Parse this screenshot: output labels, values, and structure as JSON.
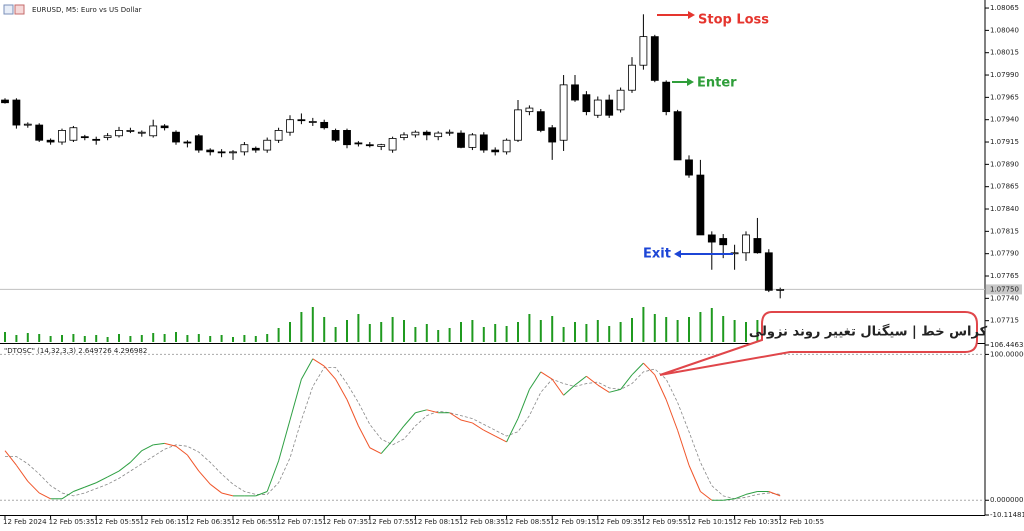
{
  "chart_data": [
    {
      "type": "candlestick",
      "title": "EURUSD, M5: Euro vs US Dollar",
      "categories": [
        "12 Feb 2024",
        null,
        null,
        null,
        "12 Feb 05:35",
        null,
        null,
        null,
        "12 Feb 05:55",
        null,
        null,
        null,
        "12 Feb 06:15",
        null,
        null,
        null,
        "12 Feb 06:35",
        null,
        null,
        null,
        "12 Feb 06:55",
        null,
        null,
        null,
        "12 Feb 07:15",
        null,
        null,
        null,
        "12 Feb 07:35",
        null,
        null,
        null,
        "12 Feb 07:55",
        null,
        null,
        null,
        "12 Feb 08:15",
        null,
        null,
        null,
        "12 Feb 08:35",
        null,
        null,
        null,
        "12 Feb 08:55",
        null,
        null,
        null,
        "12 Feb 09:15",
        null,
        null,
        null,
        "12 Feb 09:35",
        null,
        null,
        null,
        "12 Feb 09:55",
        null,
        null,
        null,
        "12 Feb 10:15",
        null,
        null,
        null,
        "12 Feb 10:35",
        null,
        null,
        null,
        "12 Feb 10:55"
      ],
      "open": [
        1.07962,
        1.07962,
        1.07934,
        1.07934,
        1.07917,
        1.07915,
        1.07917,
        1.07921,
        1.07918,
        1.0792,
        1.07922,
        1.07927,
        1.07925,
        1.07922,
        1.07933,
        1.07926,
        1.07915,
        1.07922,
        1.07906,
        1.07904,
        1.07903,
        1.07904,
        1.07908,
        1.07906,
        1.07917,
        1.07926,
        1.0794,
        1.07937,
        1.07937,
        1.07928,
        1.07928,
        1.07914,
        1.07912,
        1.0791,
        1.07906,
        1.0792,
        1.07923,
        1.07926,
        1.07921,
        1.07925,
        1.07925,
        1.07909,
        1.07923,
        1.07906,
        1.07904,
        1.07917,
        1.07949,
        1.07949,
        1.07931,
        1.07917,
        1.07979,
        1.07968,
        1.07945,
        1.07962,
        1.07951,
        1.07973,
        1.08001,
        1.08033,
        1.07982,
        1.07949,
        1.07895,
        1.07878,
        1.07811,
        1.07807,
        1.07791,
        1.07791,
        1.07807,
        1.07791,
        1.07749
      ],
      "high": [
        1.07964,
        1.07964,
        1.07937,
        1.07936,
        1.07919,
        1.0793,
        1.07933,
        1.07923,
        1.07921,
        1.07925,
        1.07932,
        1.07931,
        1.07928,
        1.0794,
        1.07935,
        1.07928,
        1.07917,
        1.07924,
        1.07908,
        1.07907,
        1.07906,
        1.07915,
        1.0791,
        1.0792,
        1.07931,
        1.07945,
        1.07947,
        1.07942,
        1.0794,
        1.0793,
        1.0793,
        1.07916,
        1.07915,
        1.07913,
        1.07921,
        1.07926,
        1.07928,
        1.07928,
        1.07927,
        1.07929,
        1.07928,
        1.07925,
        1.07926,
        1.07909,
        1.07919,
        1.07962,
        1.07956,
        1.07952,
        1.07934,
        1.0799,
        1.0799,
        1.07972,
        1.07966,
        1.07968,
        1.07976,
        1.0801,
        1.08058,
        1.08035,
        1.07984,
        1.07951,
        1.079,
        1.07895,
        1.07815,
        1.07812,
        1.078,
        1.07815,
        1.0783,
        1.07795,
        1.07752
      ],
      "low": [
        1.07958,
        1.0793,
        1.07931,
        1.07915,
        1.07912,
        1.07912,
        1.07915,
        1.07917,
        1.07912,
        1.07917,
        1.0792,
        1.07925,
        1.07921,
        1.0792,
        1.07928,
        1.07912,
        1.07909,
        1.07903,
        1.079,
        1.07898,
        1.07895,
        1.079,
        1.07903,
        1.07903,
        1.07914,
        1.07922,
        1.07935,
        1.07933,
        1.07929,
        1.07915,
        1.07908,
        1.0791,
        1.07909,
        1.07906,
        1.07903,
        1.07917,
        1.0792,
        1.07917,
        1.07917,
        1.07922,
        1.07908,
        1.07906,
        1.07903,
        1.079,
        1.07901,
        1.07915,
        1.07945,
        1.07926,
        1.07895,
        1.07905,
        1.0796,
        1.07945,
        1.07942,
        1.07942,
        1.07948,
        1.0797,
        1.07996,
        1.07982,
        1.07945,
        1.07895,
        1.07875,
        1.07811,
        1.07772,
        1.07785,
        1.07772,
        1.07782,
        1.0779,
        1.07747,
        1.0774
      ],
      "close": [
        1.07959,
        1.07934,
        1.07935,
        1.07917,
        1.07915,
        1.07928,
        1.07931,
        1.0792,
        1.07917,
        1.07922,
        1.07928,
        1.07928,
        1.07926,
        1.07933,
        1.07931,
        1.07915,
        1.07914,
        1.07906,
        1.07904,
        1.07903,
        1.07904,
        1.07912,
        1.07906,
        1.07917,
        1.07928,
        1.0794,
        1.07939,
        1.07938,
        1.07931,
        1.07917,
        1.07912,
        1.07913,
        1.07911,
        1.07912,
        1.07919,
        1.07923,
        1.07926,
        1.07923,
        1.07925,
        1.07926,
        1.07909,
        1.07923,
        1.07906,
        1.07904,
        1.07917,
        1.07951,
        1.07953,
        1.07928,
        1.07915,
        1.07979,
        1.07962,
        1.07949,
        1.07962,
        1.07945,
        1.07973,
        1.08001,
        1.08033,
        1.07984,
        1.07949,
        1.07895,
        1.07878,
        1.07811,
        1.07803,
        1.078,
        1.07791,
        1.07811,
        1.07791,
        1.07749,
        1.0775
      ],
      "up_color": "#ffffff",
      "down_color": "#000000",
      "volume": {
        "color": "#1f9a1f",
        "ylim": [
          0,
          100
        ],
        "values": [
          10,
          7,
          9,
          8,
          6,
          7,
          8,
          6,
          7,
          5,
          8,
          6,
          7,
          9,
          8,
          10,
          7,
          8,
          6,
          7,
          5,
          7,
          6,
          8,
          14,
          20,
          30,
          35,
          25,
          15,
          22,
          28,
          18,
          20,
          25,
          22,
          15,
          18,
          12,
          14,
          20,
          22,
          15,
          18,
          16,
          20,
          28,
          22,
          26,
          15,
          20,
          18,
          22,
          16,
          20,
          24,
          35,
          28,
          25,
          22,
          25,
          30,
          34,
          26,
          22,
          20,
          22,
          20,
          18
        ]
      },
      "ylim": [
        1.0769,
        1.08074
      ],
      "yticks": [
        1.08065,
        {
          "value": 1.0804,
          "label": "1.08040"
        },
        1.08015,
        {
          "value": 1.0799,
          "label": "1.07990"
        },
        1.07965,
        {
          "value": 1.0794,
          "label": "1.07940"
        },
        1.07915,
        {
          "value": 1.0789,
          "label": "1.07890"
        },
        1.07865,
        {
          "value": 1.0784,
          "label": "1.07840"
        },
        1.07815,
        {
          "value": 1.0779,
          "label": "1.07790"
        },
        1.07765,
        {
          "value": 1.0774,
          "label": "1.07740"
        },
        1.07715
      ],
      "last_price": {
        "value": 1.0775,
        "label": "1.07750"
      },
      "annotations": [
        {
          "text": "Stop Loss",
          "color": "#e5352e"
        },
        {
          "text": "Enter",
          "color": "#2f9e3a"
        },
        {
          "text": "Exit",
          "color": "#1c45d6"
        }
      ],
      "callout": "کراس خط | سیگنال تغییر روند نزولی"
    },
    {
      "type": "line",
      "title": "\"DTOSC\" (14,32,3,3) 2.649726 4.296982",
      "up_color": "#2ea043",
      "down_color": "#f0552a",
      "signal_color": "#888888",
      "series": [
        {
          "values": [
            34,
            24,
            13,
            5,
            1,
            1,
            6,
            9,
            12,
            16,
            20,
            26,
            34,
            38,
            39,
            37,
            31,
            20,
            11,
            5,
            3,
            3,
            3,
            6,
            27,
            55,
            83,
            97,
            92,
            83,
            69,
            51,
            36,
            32,
            41,
            51,
            60,
            62,
            60,
            60,
            55,
            53,
            48,
            44,
            40,
            56,
            76,
            88,
            83,
            72,
            79,
            85,
            79,
            74,
            76,
            86,
            94,
            86,
            69,
            48,
            24,
            6,
            0,
            0,
            1,
            4,
            6,
            6,
            3
          ]
        },
        {
          "values": [
            30,
            30,
            25,
            18,
            10,
            5,
            3,
            5,
            8,
            11,
            15,
            20,
            25,
            30,
            35,
            38,
            37,
            33,
            26,
            18,
            11,
            6,
            4,
            4,
            12,
            29,
            55,
            78,
            91,
            91,
            80,
            67,
            52,
            42,
            38,
            42,
            51,
            58,
            61,
            60,
            58,
            56,
            52,
            48,
            44,
            47,
            58,
            74,
            83,
            80,
            78,
            80,
            81,
            77,
            76,
            80,
            88,
            90,
            83,
            67,
            47,
            26,
            10,
            3,
            1,
            2,
            4,
            5,
            4
          ]
        }
      ],
      "ylim": [
        -10.114812,
        106.446355
      ],
      "yticks": [
        106.446355,
        {
          "value": 100,
          "label": "100.000000"
        },
        {
          "value": 0,
          "label": "0.000000"
        },
        -10.114812
      ]
    }
  ]
}
